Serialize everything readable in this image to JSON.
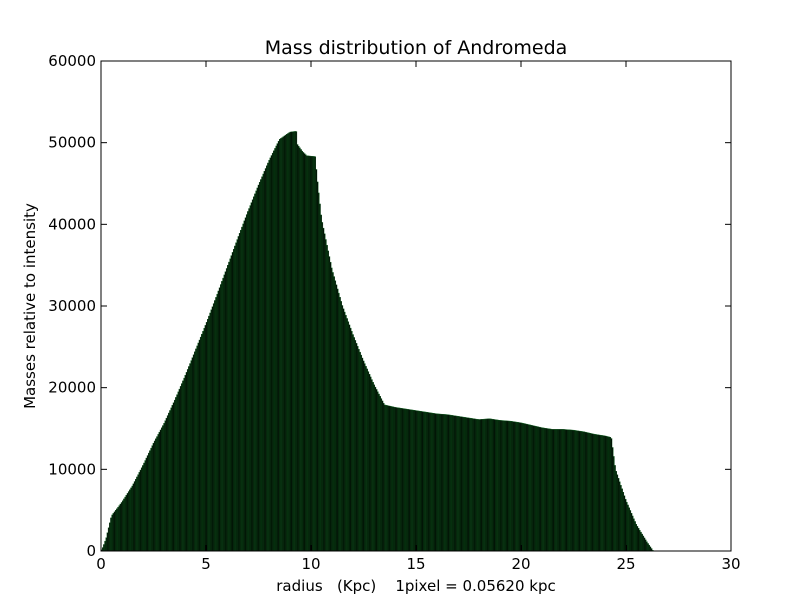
{
  "chart_data": {
    "type": "bar",
    "title": "Mass distribution of Andromeda",
    "xlabel": "radius   (Kpc)    1pixel = 0.05620 kpc",
    "ylabel": "Masses relative to intensity",
    "xlim": [
      0,
      30
    ],
    "ylim": [
      0,
      60000
    ],
    "x_ticks": [
      0,
      5,
      10,
      15,
      20,
      25,
      30
    ],
    "y_ticks": [
      0,
      10000,
      20000,
      30000,
      40000,
      50000,
      60000
    ],
    "grid": false,
    "legend": "none",
    "bar_fill": "#000000",
    "bar_edge": "#0a5a1a",
    "bin_width": 0.0562,
    "profile": {
      "x": [
        0.0,
        0.1,
        0.25,
        0.5,
        1.0,
        1.5,
        2.0,
        2.5,
        3.0,
        3.5,
        4.0,
        4.5,
        5.0,
        5.5,
        6.0,
        6.5,
        7.0,
        7.5,
        8.0,
        8.5,
        9.0,
        9.3,
        9.35,
        9.6,
        9.8,
        10.2,
        10.3,
        10.5,
        11.0,
        11.5,
        12.0,
        12.5,
        13.0,
        13.5,
        14.0,
        14.5,
        15.0,
        15.5,
        16.0,
        16.5,
        17.0,
        17.5,
        18.0,
        18.5,
        19.0,
        19.5,
        20.0,
        20.5,
        21.0,
        21.5,
        22.0,
        22.5,
        23.0,
        23.5,
        24.0,
        24.3,
        24.5,
        25.0,
        25.5,
        26.0,
        26.3,
        26.5,
        30.0
      ],
      "y": [
        0,
        500,
        1600,
        4300,
        6000,
        8000,
        10500,
        13200,
        15600,
        18400,
        21400,
        24600,
        27800,
        31200,
        34700,
        38200,
        41600,
        44800,
        47800,
        50400,
        51300,
        51400,
        49800,
        48900,
        48400,
        48300,
        45500,
        40700,
        34500,
        30000,
        26500,
        23300,
        20400,
        17900,
        17600,
        17400,
        17200,
        17000,
        16800,
        16700,
        16500,
        16300,
        16100,
        16200,
        16000,
        15900,
        15700,
        15400,
        15100,
        14900,
        14900,
        14800,
        14600,
        14300,
        14100,
        13900,
        10000,
        6200,
        3200,
        1100,
        0,
        0,
        0
      ]
    }
  }
}
